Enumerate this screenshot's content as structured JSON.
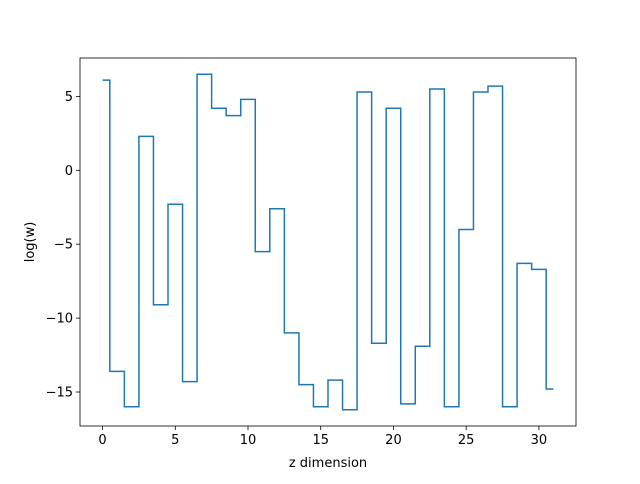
{
  "chart_data": {
    "type": "line",
    "drawstyle": "steps-mid",
    "title": "",
    "xlabel": "z dimension",
    "ylabel": "log(w)",
    "xlim": [
      -1.55,
      32.55
    ],
    "ylim": [
      -17.3,
      7.6
    ],
    "xticks": [
      0,
      5,
      10,
      15,
      20,
      25,
      30
    ],
    "yticks": [
      -15,
      -10,
      -5,
      0,
      5
    ],
    "ytick_labels": [
      "−15",
      "−10",
      "−5",
      "0",
      "5"
    ],
    "grid": false,
    "legend": null,
    "series": [
      {
        "color": "#1f77b4",
        "x": [
          0,
          1,
          2,
          3,
          4,
          5,
          6,
          7,
          8,
          9,
          10,
          11,
          12,
          13,
          14,
          15,
          16,
          17,
          18,
          19,
          20,
          21,
          22,
          23,
          24,
          25,
          26,
          27,
          28,
          29,
          30,
          31
        ],
        "y": [
          6.1,
          -13.6,
          -16.0,
          2.3,
          -9.1,
          -2.3,
          -14.3,
          6.5,
          4.2,
          3.7,
          4.8,
          -5.5,
          -2.6,
          -11.0,
          -14.5,
          -16.0,
          -14.2,
          -16.2,
          5.3,
          -11.7,
          4.2,
          -15.8,
          -11.9,
          5.5,
          -16.0,
          -4.0,
          5.3,
          5.7,
          -16.0,
          -6.3,
          -6.7,
          -14.8
        ]
      }
    ]
  }
}
